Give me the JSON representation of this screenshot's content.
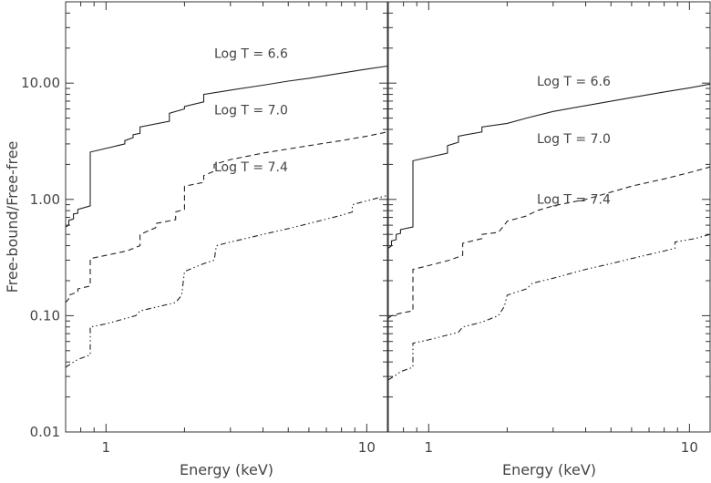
{
  "chart_data": [
    {
      "type": "line",
      "title": "",
      "xlabel": "Energy (keV)",
      "ylabel": "Free-bound/Free-free",
      "xscale": "log",
      "yscale": "log",
      "xlim": [
        0.7,
        12
      ],
      "ylim": [
        0.01,
        50
      ],
      "xticks": [
        {
          "value": 1,
          "label": "1"
        },
        {
          "value": 10,
          "label": "10"
        }
      ],
      "yticks": [
        {
          "value": 0.01,
          "label": "0.01"
        },
        {
          "value": 0.1,
          "label": "0.10"
        },
        {
          "value": 1,
          "label": "1.00"
        },
        {
          "value": 10,
          "label": "10.00"
        }
      ],
      "grid": false,
      "series": [
        {
          "name": "Log T = 6.6",
          "dash": "solid",
          "label_at": [
            3.6,
            16.5
          ],
          "points": [
            [
              0.7,
              0.58
            ],
            [
              0.72,
              0.6
            ],
            [
              0.72,
              0.66
            ],
            [
              0.75,
              0.68
            ],
            [
              0.75,
              0.75
            ],
            [
              0.78,
              0.76
            ],
            [
              0.78,
              0.82
            ],
            [
              0.87,
              0.88
            ],
            [
              0.87,
              2.55
            ],
            [
              1.18,
              3.0
            ],
            [
              1.18,
              3.2
            ],
            [
              1.27,
              3.4
            ],
            [
              1.27,
              3.6
            ],
            [
              1.35,
              3.7
            ],
            [
              1.35,
              4.2
            ],
            [
              1.75,
              4.7
            ],
            [
              1.75,
              5.5
            ],
            [
              2.0,
              6.0
            ],
            [
              2.0,
              6.3
            ],
            [
              2.37,
              6.9
            ],
            [
              2.37,
              8.0
            ],
            [
              3.0,
              8.7
            ],
            [
              4.0,
              9.6
            ],
            [
              5.0,
              10.4
            ],
            [
              6.0,
              11.0
            ],
            [
              8.0,
              12.2
            ],
            [
              10.0,
              13.2
            ],
            [
              12.0,
              14.0
            ]
          ]
        },
        {
          "name": "Log T = 7.0",
          "dash": "dashed",
          "label_at": [
            3.6,
            5.4
          ],
          "points": [
            [
              0.7,
              0.13
            ],
            [
              0.72,
              0.14
            ],
            [
              0.72,
              0.15
            ],
            [
              0.78,
              0.16
            ],
            [
              0.78,
              0.17
            ],
            [
              0.87,
              0.18
            ],
            [
              0.87,
              0.31
            ],
            [
              1.0,
              0.33
            ],
            [
              1.2,
              0.36
            ],
            [
              1.35,
              0.4
            ],
            [
              1.35,
              0.5
            ],
            [
              1.55,
              0.57
            ],
            [
              1.55,
              0.62
            ],
            [
              1.85,
              0.67
            ],
            [
              1.85,
              0.78
            ],
            [
              2.0,
              0.82
            ],
            [
              2.0,
              1.3
            ],
            [
              2.37,
              1.4
            ],
            [
              2.37,
              1.6
            ],
            [
              2.6,
              1.75
            ],
            [
              2.6,
              2.0
            ],
            [
              3.0,
              2.2
            ],
            [
              4.0,
              2.5
            ],
            [
              6.0,
              2.9
            ],
            [
              8.0,
              3.2
            ],
            [
              10.0,
              3.5
            ],
            [
              12.0,
              3.8
            ]
          ]
        },
        {
          "name": "Log T = 7.4",
          "dash": "dashdot",
          "label_at": [
            3.6,
            1.75
          ],
          "points": [
            [
              0.7,
              0.036
            ],
            [
              0.75,
              0.04
            ],
            [
              0.78,
              0.042
            ],
            [
              0.87,
              0.046
            ],
            [
              0.87,
              0.08
            ],
            [
              1.0,
              0.085
            ],
            [
              1.3,
              0.1
            ],
            [
              1.35,
              0.11
            ],
            [
              1.6,
              0.12
            ],
            [
              1.85,
              0.13
            ],
            [
              1.95,
              0.15
            ],
            [
              2.0,
              0.24
            ],
            [
              2.37,
              0.28
            ],
            [
              2.6,
              0.3
            ],
            [
              2.65,
              0.4
            ],
            [
              3.0,
              0.43
            ],
            [
              4.0,
              0.5
            ],
            [
              5.0,
              0.56
            ],
            [
              6.0,
              0.62
            ],
            [
              8.0,
              0.73
            ],
            [
              8.8,
              0.78
            ],
            [
              8.8,
              0.9
            ],
            [
              10.5,
              1.0
            ],
            [
              12.0,
              1.08
            ]
          ]
        }
      ]
    },
    {
      "type": "line",
      "title": "",
      "xlabel": "Energy (keV)",
      "ylabel": "",
      "xscale": "log",
      "yscale": "log",
      "xlim": [
        0.7,
        12
      ],
      "ylim": [
        0.01,
        50
      ],
      "xticks": [
        {
          "value": 1,
          "label": "1"
        },
        {
          "value": 10,
          "label": "10"
        }
      ],
      "yticks": [],
      "grid": false,
      "series": [
        {
          "name": "Log T = 6.6",
          "dash": "solid",
          "label_at": [
            3.6,
            9.5
          ],
          "points": [
            [
              0.7,
              0.38
            ],
            [
              0.72,
              0.4
            ],
            [
              0.72,
              0.44
            ],
            [
              0.75,
              0.45
            ],
            [
              0.75,
              0.5
            ],
            [
              0.78,
              0.51
            ],
            [
              0.78,
              0.55
            ],
            [
              0.87,
              0.58
            ],
            [
              0.87,
              2.15
            ],
            [
              1.18,
              2.5
            ],
            [
              1.18,
              2.9
            ],
            [
              1.3,
              3.1
            ],
            [
              1.3,
              3.5
            ],
            [
              1.6,
              3.8
            ],
            [
              1.6,
              4.2
            ],
            [
              2.0,
              4.5
            ],
            [
              2.37,
              5.0
            ],
            [
              3.0,
              5.7
            ],
            [
              4.0,
              6.4
            ],
            [
              6.0,
              7.5
            ],
            [
              8.0,
              8.4
            ],
            [
              10.0,
              9.1
            ],
            [
              12.0,
              9.8
            ]
          ]
        },
        {
          "name": "Log T = 7.0",
          "dash": "dashed",
          "label_at": [
            3.6,
            3.05
          ],
          "points": [
            [
              0.7,
              0.095
            ],
            [
              0.72,
              0.1
            ],
            [
              0.78,
              0.105
            ],
            [
              0.87,
              0.11
            ],
            [
              0.87,
              0.25
            ],
            [
              1.0,
              0.27
            ],
            [
              1.2,
              0.3
            ],
            [
              1.35,
              0.33
            ],
            [
              1.35,
              0.42
            ],
            [
              1.6,
              0.46
            ],
            [
              1.6,
              0.5
            ],
            [
              1.85,
              0.52
            ],
            [
              1.95,
              0.6
            ],
            [
              2.0,
              0.65
            ],
            [
              2.37,
              0.72
            ],
            [
              2.6,
              0.8
            ],
            [
              3.0,
              0.88
            ],
            [
              4.0,
              1.0
            ],
            [
              6.0,
              1.3
            ],
            [
              8.0,
              1.5
            ],
            [
              10.0,
              1.7
            ],
            [
              12.0,
              1.9
            ]
          ]
        },
        {
          "name": "Log T = 7.4",
          "dash": "dashdot",
          "label_at": [
            3.6,
            0.92
          ],
          "points": [
            [
              0.7,
              0.028
            ],
            [
              0.75,
              0.031
            ],
            [
              0.78,
              0.033
            ],
            [
              0.87,
              0.036
            ],
            [
              0.87,
              0.058
            ],
            [
              1.0,
              0.062
            ],
            [
              1.3,
              0.072
            ],
            [
              1.35,
              0.08
            ],
            [
              1.6,
              0.088
            ],
            [
              1.85,
              0.1
            ],
            [
              1.95,
              0.12
            ],
            [
              2.0,
              0.15
            ],
            [
              2.37,
              0.17
            ],
            [
              2.5,
              0.19
            ],
            [
              3.0,
              0.21
            ],
            [
              4.0,
              0.25
            ],
            [
              5.0,
              0.28
            ],
            [
              6.0,
              0.31
            ],
            [
              8.0,
              0.36
            ],
            [
              8.8,
              0.38
            ],
            [
              8.8,
              0.43
            ],
            [
              10.5,
              0.46
            ],
            [
              12.0,
              0.5
            ]
          ]
        }
      ]
    }
  ]
}
